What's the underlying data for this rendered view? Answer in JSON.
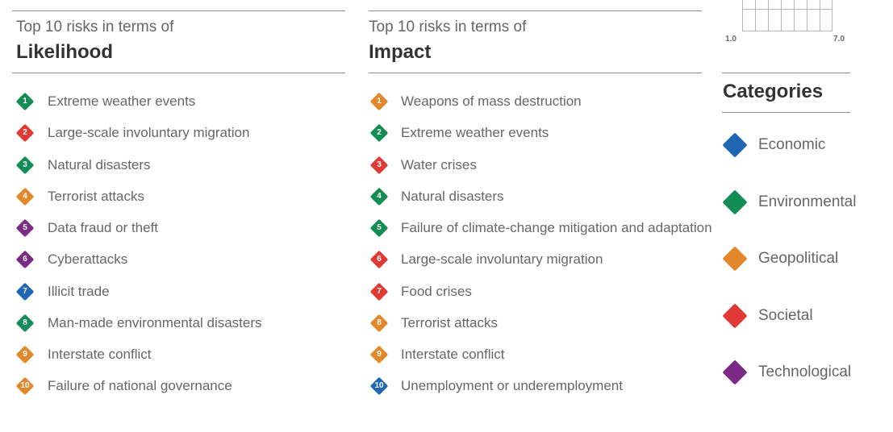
{
  "colors": {
    "Economic": "#1f66b3",
    "Environmental": "#148c55",
    "Geopolitical": "#e3872b",
    "Societal": "#e03a35",
    "Technological": "#7b2a86"
  },
  "likelihood": {
    "pre": "Top 10 risks in terms of",
    "heading": "Likelihood"
  },
  "impact": {
    "pre": "Top 10 risks in terms of",
    "heading": "Impact"
  },
  "scale": {
    "min": "1.0",
    "max": "7.0"
  },
  "categories": {
    "title": "Categories",
    "items": [
      {
        "label": "Economic",
        "color": "#1f66b3"
      },
      {
        "label": "Environmental",
        "color": "#148c55"
      },
      {
        "label": "Geopolitical",
        "color": "#e3872b"
      },
      {
        "label": "Societal",
        "color": "#e03a35"
      },
      {
        "label": "Technological",
        "color": "#7b2a86"
      }
    ]
  },
  "chart_data": {
    "type": "table",
    "columns": [
      "Likelihood",
      "Impact"
    ],
    "likelihood": [
      {
        "rank": "1",
        "label": "Extreme weather events",
        "category": "Environmental"
      },
      {
        "rank": "2",
        "label": "Large-scale involuntary migration",
        "category": "Societal"
      },
      {
        "rank": "3",
        "label": "Natural disasters",
        "category": "Environmental"
      },
      {
        "rank": "4",
        "label": "Terrorist attacks",
        "category": "Geopolitical"
      },
      {
        "rank": "5",
        "label": "Data fraud or theft",
        "category": "Technological"
      },
      {
        "rank": "6",
        "label": "Cyberattacks",
        "category": "Technological"
      },
      {
        "rank": "7",
        "label": "Illicit trade",
        "category": "Economic"
      },
      {
        "rank": "8",
        "label": "Man-made environmental disasters",
        "category": "Environmental"
      },
      {
        "rank": "9",
        "label": "Interstate conflict",
        "category": "Geopolitical"
      },
      {
        "rank": "10",
        "label": "Failure of national governance",
        "category": "Geopolitical"
      }
    ],
    "impact": [
      {
        "rank": "1",
        "label": "Weapons of mass destruction",
        "category": "Geopolitical"
      },
      {
        "rank": "2",
        "label": "Extreme weather events",
        "category": "Environmental"
      },
      {
        "rank": "3",
        "label": "Water crises",
        "category": "Societal"
      },
      {
        "rank": "4",
        "label": "Natural disasters",
        "category": "Environmental"
      },
      {
        "rank": "5",
        "label": "Failure of climate-change mitigation and adaptation",
        "category": "Environmental"
      },
      {
        "rank": "6",
        "label": "Large-scale involuntary migration",
        "category": "Societal"
      },
      {
        "rank": "7",
        "label": "Food crises",
        "category": "Societal"
      },
      {
        "rank": "8",
        "label": "Terrorist attacks",
        "category": "Geopolitical"
      },
      {
        "rank": "9",
        "label": "Interstate conflict",
        "category": "Geopolitical"
      },
      {
        "rank": "10",
        "label": "Unemployment or underemployment",
        "category": "Economic"
      }
    ]
  }
}
